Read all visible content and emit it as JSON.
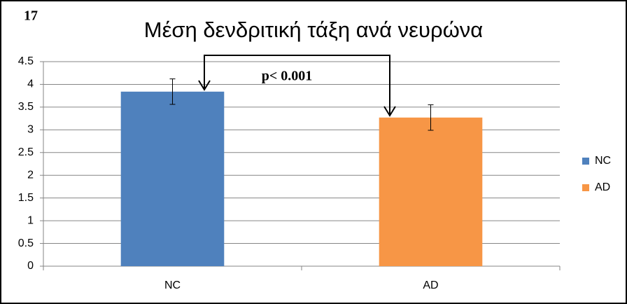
{
  "chart_data": {
    "type": "bar",
    "label": "17",
    "title": "Μέση δενδριτική τάξη ανά νευρώνα",
    "annotation": "p< 0.001",
    "categories": [
      "NC",
      "AD"
    ],
    "series": [
      {
        "name": "NC",
        "color": "#4f81bd",
        "values": [
          3.84,
          null
        ],
        "errors": [
          0.28,
          null
        ]
      },
      {
        "name": "AD",
        "color": "#f79646",
        "values": [
          null,
          3.27
        ],
        "errors": [
          null,
          0.28
        ]
      }
    ],
    "ylim": [
      0,
      4.5
    ],
    "yticks": [
      0,
      0.5,
      1,
      1.5,
      2,
      2.5,
      3,
      3.5,
      4,
      4.5
    ],
    "grid": true,
    "legend": "right"
  }
}
